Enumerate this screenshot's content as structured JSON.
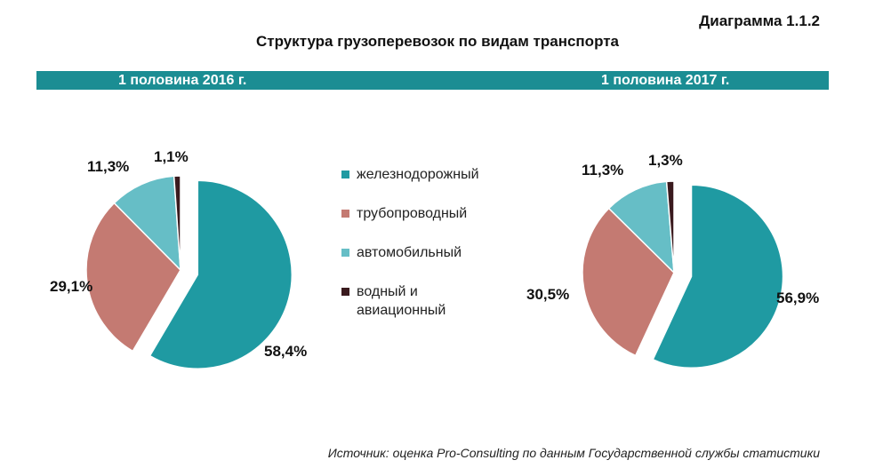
{
  "header": {
    "diagram_number": "Диаграмма 1.1.2",
    "title": "Структура грузоперевозок по видам транспорта"
  },
  "colors": {
    "band": "#1b8d93",
    "railway": "#1f9aa2",
    "pipeline": "#c47a72",
    "automobile": "#66bec6",
    "water_air": "#3a1a1e"
  },
  "chart_data": [
    {
      "type": "pie",
      "title": "1 половина 2016 г.",
      "categories": [
        "железнодорожный",
        "трубопроводный",
        "автомобильный",
        "водный и авиационный"
      ],
      "values": [
        58.4,
        29.1,
        11.3,
        1.1
      ],
      "labels": [
        "58,4%",
        "29,1%",
        "11,3%",
        "1,1%"
      ],
      "exploded": "железнодорожный",
      "legend": "center"
    },
    {
      "type": "pie",
      "title": "1 половина 2017 г.",
      "categories": [
        "железнодорожный",
        "трубопроводный",
        "автомобильный",
        "водный и авиационный"
      ],
      "values": [
        56.9,
        30.5,
        11.3,
        1.3
      ],
      "labels": [
        "56,9%",
        "30,5%",
        "11,3%",
        "1,3%"
      ],
      "exploded": "железнодорожный",
      "legend": "center"
    }
  ],
  "legend": [
    {
      "label": "железнодорожный",
      "color_key": "railway"
    },
    {
      "label": "трубопроводный",
      "color_key": "pipeline"
    },
    {
      "label": "автомобильный",
      "color_key": "automobile"
    },
    {
      "label": "водный и авиационный",
      "color_key": "water_air"
    }
  ],
  "source": "Источник: оценка Pro-Consulting по данным Государственной службы статистики"
}
